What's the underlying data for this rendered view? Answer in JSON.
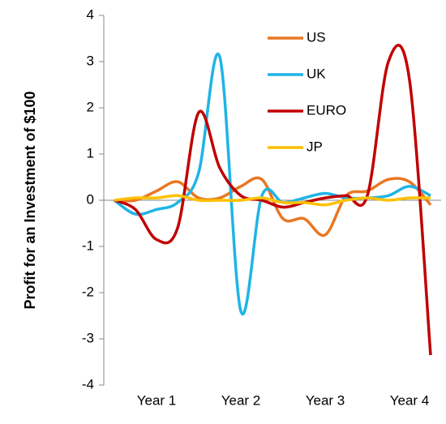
{
  "chart_data": {
    "type": "line",
    "y_label": "Profit for an Investment of $100",
    "categories": [
      null,
      null,
      "Year 1",
      null,
      null,
      null,
      "Year 2",
      null,
      null,
      null,
      "Year 3",
      null,
      null,
      null,
      "Year 4",
      null
    ],
    "ylim": [
      -4,
      4
    ],
    "yticks": [
      -4,
      -3,
      -2,
      -1,
      0,
      1,
      2,
      3,
      4
    ],
    "grid": false,
    "legend": "top-right",
    "series": [
      {
        "name": "US",
        "color": "#e87722",
        "values": [
          0,
          0,
          0.2,
          0.4,
          0.05,
          0.05,
          0.3,
          0.45,
          -0.4,
          -0.4,
          -0.75,
          0.1,
          0.2,
          0.45,
          0.4,
          -0.1
        ]
      },
      {
        "name": "UK",
        "color": "#1fb4e6",
        "values": [
          0,
          -0.3,
          -0.2,
          -0.05,
          0.6,
          3.1,
          -2.4,
          0.1,
          -0.05,
          0.05,
          0.15,
          0.05,
          0.05,
          0.1,
          0.3,
          0.1
        ]
      },
      {
        "name": "EURO",
        "color": "#c00000",
        "values": [
          0,
          -0.2,
          -0.85,
          -0.6,
          1.9,
          0.7,
          0.1,
          0,
          -0.15,
          -0.05,
          0.05,
          0.1,
          0.1,
          3.0,
          2.6,
          -3.35
        ]
      },
      {
        "name": "JP",
        "color": "#ffc000",
        "values": [
          0,
          0.05,
          0.05,
          0.1,
          0,
          0,
          0,
          0.05,
          -0.05,
          -0.05,
          -0.1,
          0,
          0.05,
          0,
          0.05,
          0.05
        ]
      }
    ]
  }
}
